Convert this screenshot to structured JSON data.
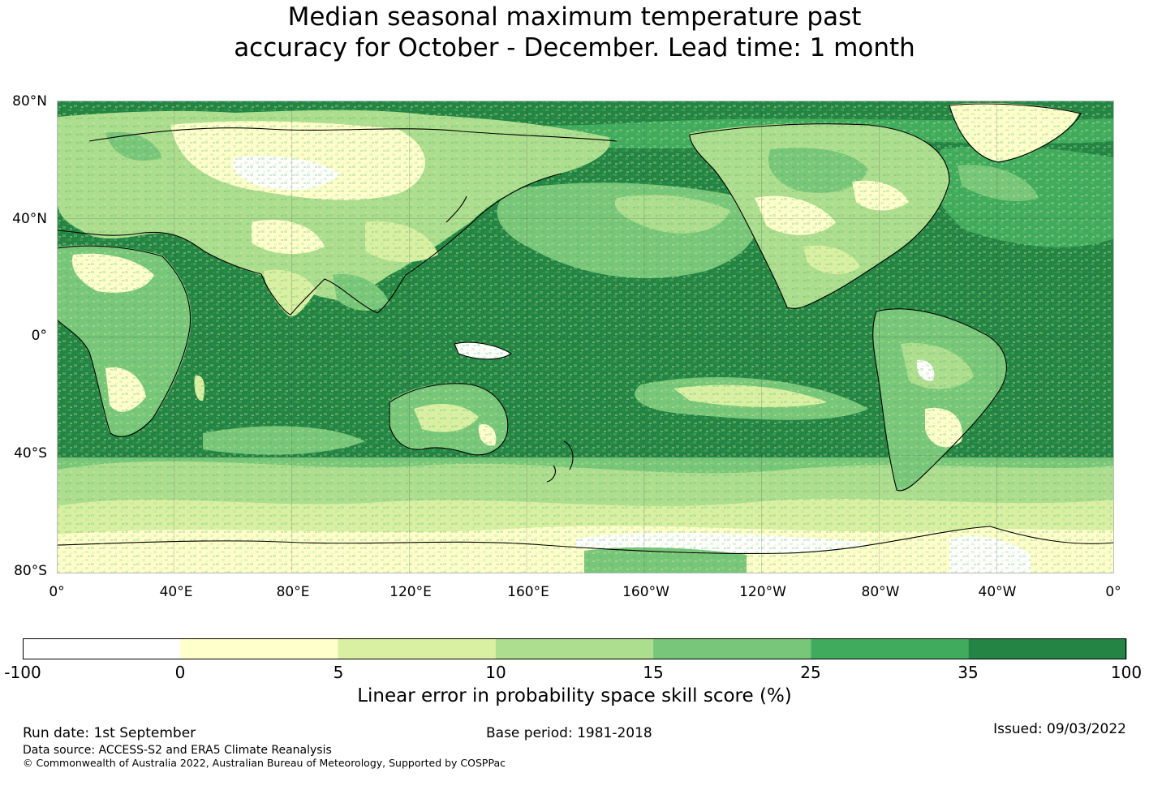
{
  "title": {
    "line1": "Median seasonal maximum temperature past",
    "line2": "accuracy for October - December. Lead time: 1 month"
  },
  "map": {
    "lat_labels": [
      "80°N",
      "40°N",
      "0°",
      "40°S",
      "80°S"
    ],
    "lon_labels": [
      "0°",
      "40°E",
      "80°E",
      "120°E",
      "160°E",
      "160°W",
      "120°W",
      "80°W",
      "40°W",
      "0°"
    ],
    "projection": "equirectangular, Pacific-centred",
    "extent": {
      "lon": [
        0,
        360
      ],
      "lat": [
        -80,
        80
      ]
    }
  },
  "colorbar": {
    "ticks": [
      "-100",
      "0",
      "5",
      "10",
      "15",
      "25",
      "35",
      "100"
    ],
    "colors": [
      "#ffffff",
      "#ffffcc",
      "#d9f0a3",
      "#addd8e",
      "#78c679",
      "#41ab5d",
      "#238443"
    ],
    "label": "Linear error in probability space skill score (%)"
  },
  "footer": {
    "run_date": "Run date: 1st September",
    "base_period": "Base period: 1981-2018",
    "issued": "Issued: 09/03/2022",
    "data_source": "Data source: ACCESS-S2 and ERA5 Climate Reanalysis",
    "copyright": "© Commonwealth of Australia 2022, Australian Bureau of Meteorology, Supported by COSPPac"
  }
}
